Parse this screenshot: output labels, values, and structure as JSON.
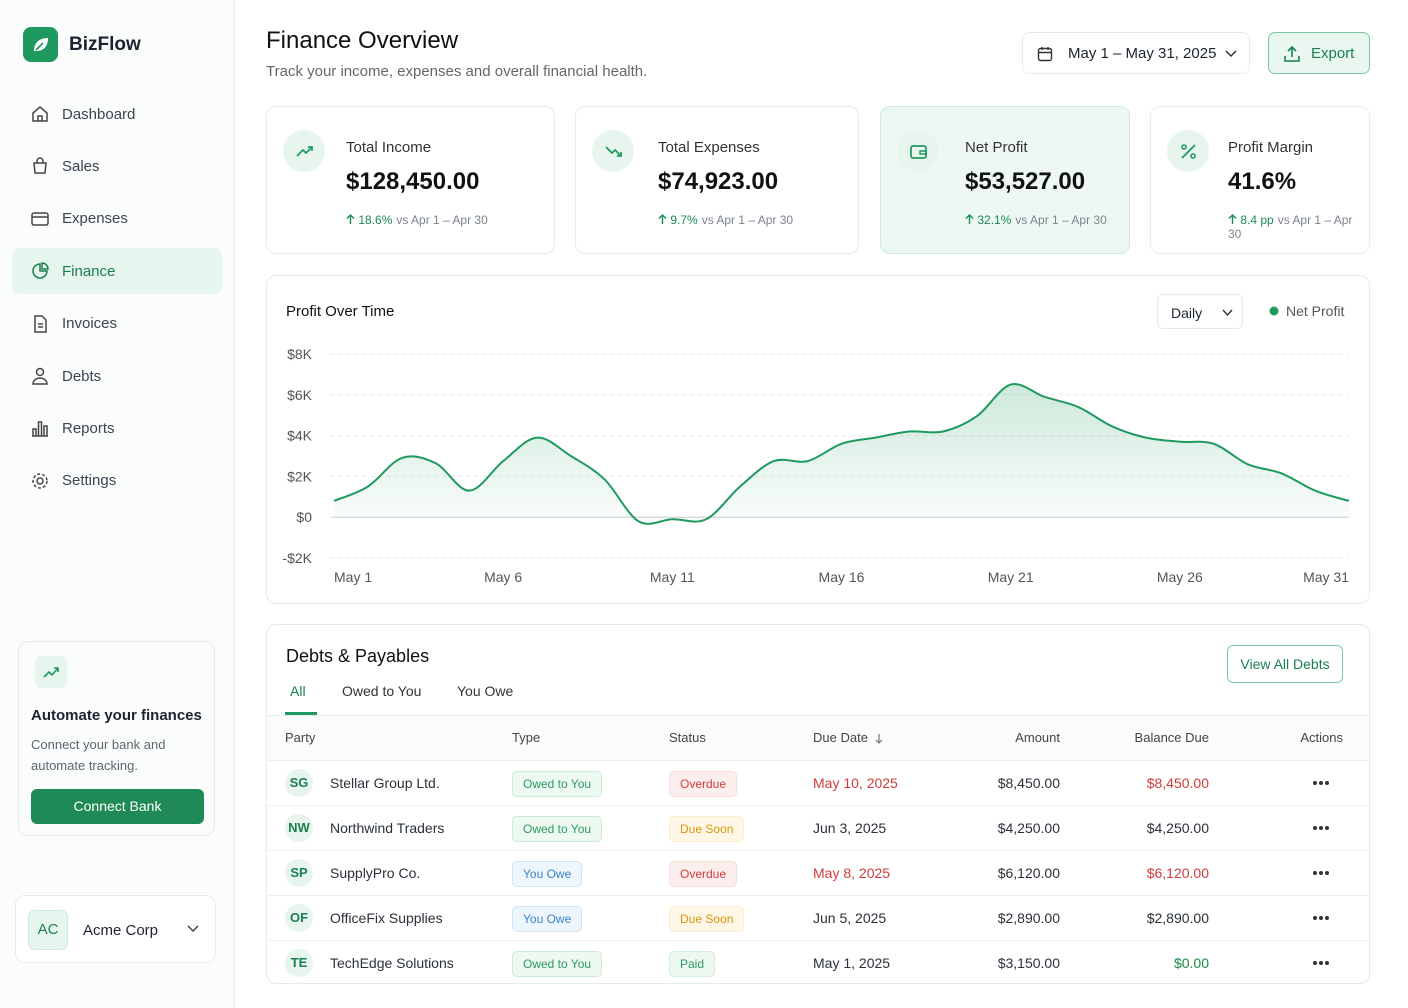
{
  "sidebar": {
    "brand": "BizFlow",
    "nav": [
      "Dashboard",
      "Sales",
      "Expenses",
      "Finance",
      "Invoices",
      "Debts",
      "Reports",
      "Settings"
    ],
    "promo": {
      "title": "Automate your finances",
      "text": "Connect your bank and automate tracking.",
      "button": "Connect Bank"
    },
    "account": {
      "initials": "AC",
      "name": "Acme Corp"
    }
  },
  "header": {
    "title": "Finance Overview",
    "subtitle": "Track your income, expenses and overall financial health.",
    "date_range": "May 1 – May 31, 2025",
    "export": "Export"
  },
  "kpis": [
    {
      "label": "Total Income",
      "value": "$128,450.00",
      "change": "18.6%",
      "comparison": "vs Apr 1 – Apr 30"
    },
    {
      "label": "Total Expenses",
      "value": "$74,923.00",
      "change": "9.7%",
      "comparison": "vs Apr 1 – Apr 30"
    },
    {
      "label": "Net Profit",
      "value": "$53,527.00",
      "change": "32.1%",
      "comparison": "vs Apr 1 – Apr 30"
    },
    {
      "label": "Profit Margin",
      "value": "41.6%",
      "change": "8.4 pp",
      "comparison": "vs Apr 1 – Apr 30"
    }
  ],
  "chart_data": {
    "type": "area",
    "title": "Profit Over Time",
    "period": "Daily",
    "categories": [
      "May 1",
      null,
      null,
      null,
      null,
      "May 6",
      null,
      null,
      null,
      null,
      "May 11",
      null,
      null,
      null,
      null,
      "May 16",
      null,
      null,
      null,
      null,
      "May 21",
      null,
      null,
      null,
      null,
      "May 26",
      null,
      null,
      null,
      null,
      "May 31"
    ],
    "series": [
      {
        "name": "Net Profit",
        "color": "#1f9a5e",
        "values": [
          800,
          1500,
          2900,
          2650,
          1300,
          2750,
          3900,
          3000,
          1850,
          -200,
          -100,
          -100,
          1500,
          2750,
          2750,
          3600,
          3900,
          4200,
          4200,
          4950,
          6500,
          5900,
          5400,
          4450,
          3900,
          3700,
          3600,
          2600,
          2150,
          1300,
          800
        ]
      }
    ],
    "ylim": [
      -2000,
      8000
    ],
    "yticks": [
      {
        "value": -2000,
        "label": "-$2K"
      },
      {
        "value": 0,
        "label": "$0"
      },
      {
        "value": 2000,
        "label": "$2K"
      },
      {
        "value": 4000,
        "label": "$4K"
      },
      {
        "value": 6000,
        "label": "$6K"
      },
      {
        "value": 8000,
        "label": "$8K"
      }
    ],
    "grid": true,
    "legend": "top-right"
  },
  "debts": {
    "title": "Debts & Payables",
    "tabs": [
      "All",
      "Owed to You",
      "You Owe"
    ],
    "view_all": "View All Debts",
    "columns": [
      "Party",
      "Type",
      "Status",
      "Due Date",
      "Amount",
      "Balance Due",
      "Actions"
    ],
    "rows": [
      {
        "initials": "SG",
        "party": "Stellar Group Ltd.",
        "type": "Owed to You",
        "status": "Overdue",
        "due_date": "May 10, 2025",
        "amount": "$8,450.00",
        "balance": "$8,450.00"
      },
      {
        "initials": "NW",
        "party": "Northwind Traders",
        "type": "Owed to You",
        "status": "Due Soon",
        "due_date": "Jun 3, 2025",
        "amount": "$4,250.00",
        "balance": "$4,250.00"
      },
      {
        "initials": "SP",
        "party": "SupplyPro Co.",
        "type": "You Owe",
        "status": "Overdue",
        "due_date": "May 8, 2025",
        "amount": "$6,120.00",
        "balance": "$6,120.00"
      },
      {
        "initials": "OF",
        "party": "OfficeFix Supplies",
        "type": "You Owe",
        "status": "Due Soon",
        "due_date": "Jun 5, 2025",
        "amount": "$2,890.00",
        "balance": "$2,890.00"
      },
      {
        "initials": "TE",
        "party": "TechEdge Solutions",
        "type": "Owed to You",
        "status": "Paid",
        "due_date": "May 1, 2025",
        "amount": "$3,150.00",
        "balance": "$0.00"
      }
    ]
  }
}
